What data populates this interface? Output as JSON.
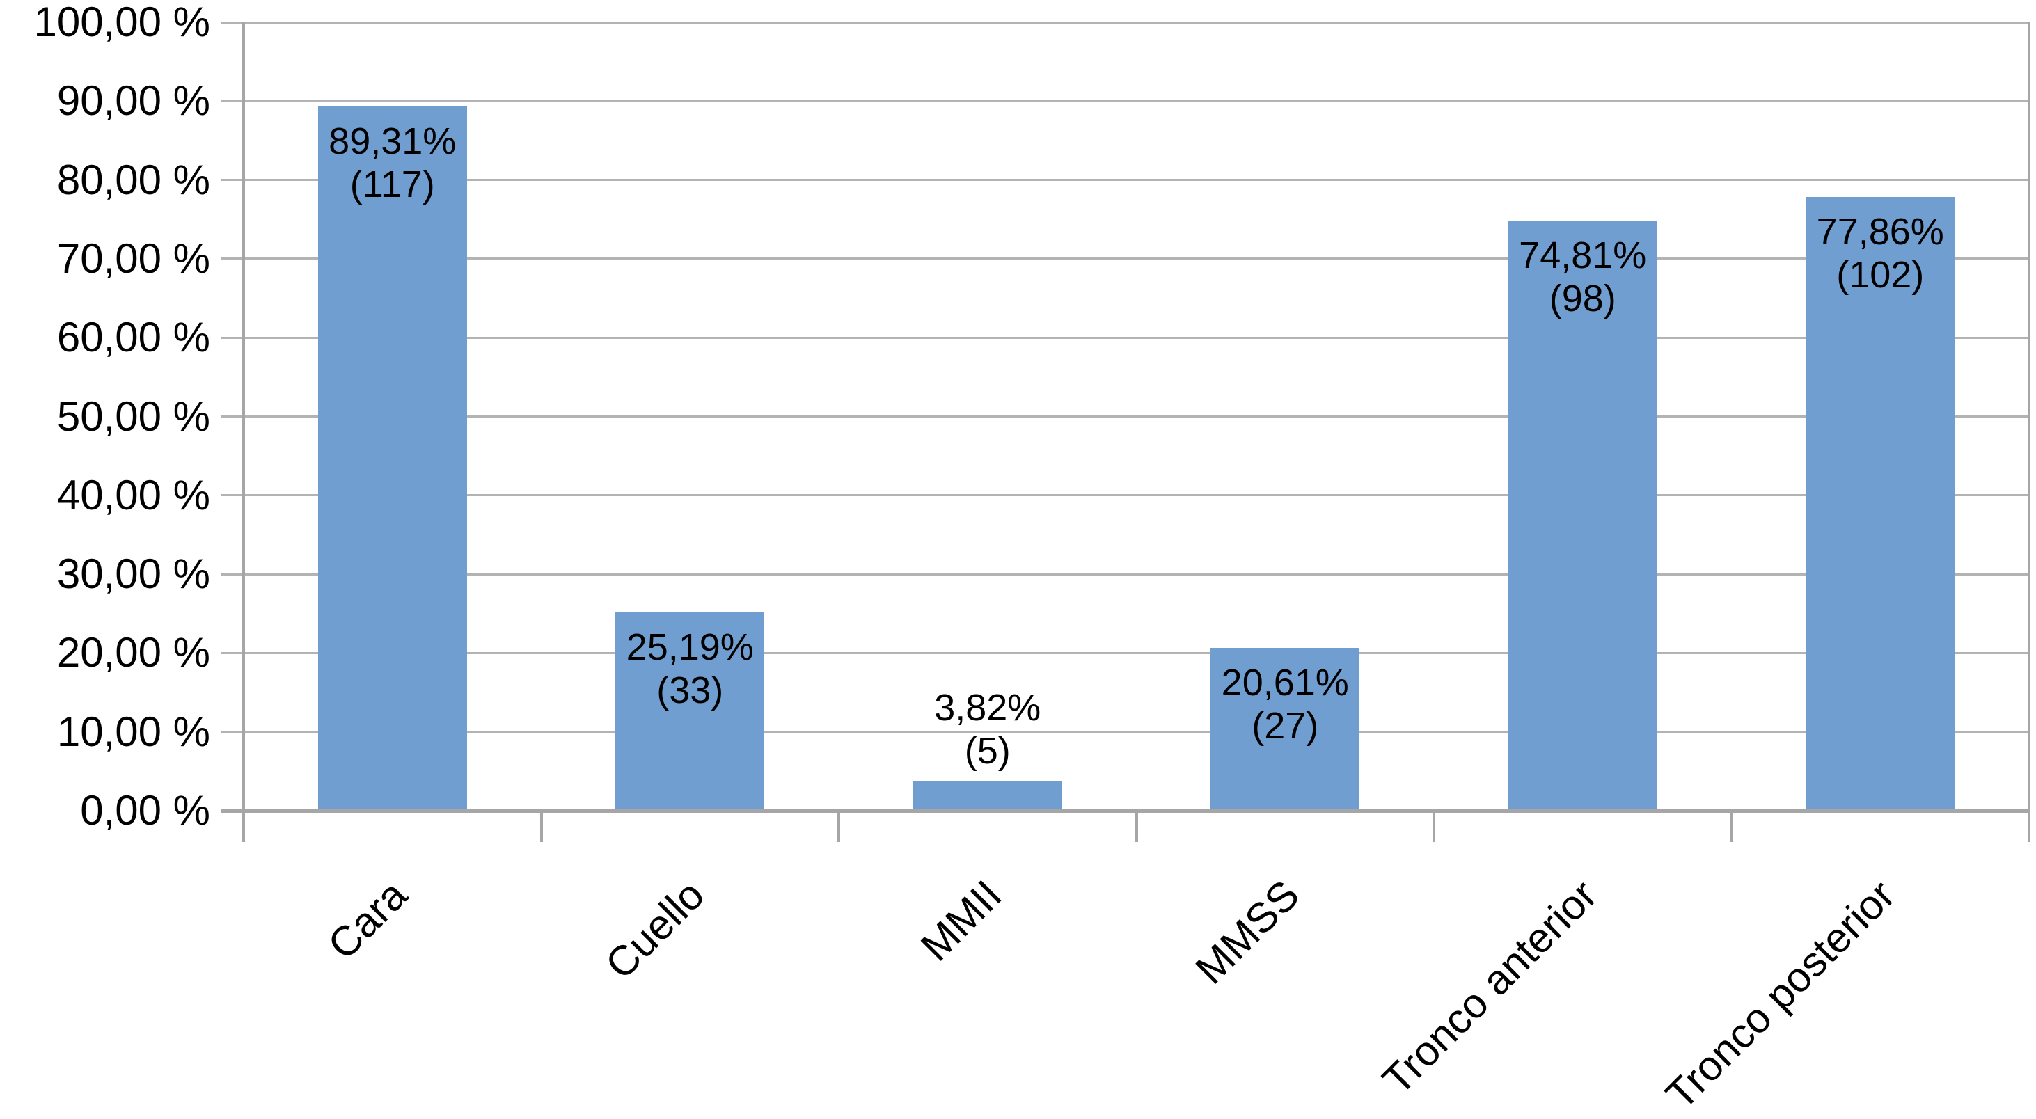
{
  "chart_data": {
    "type": "bar",
    "title": "",
    "xlabel": "",
    "ylabel": "",
    "legend": "none",
    "grid": "horizontal",
    "ylim": [
      0,
      100
    ],
    "y_tick_step": 10,
    "y_tick_labels": [
      "100,00 %",
      "90,00 %",
      "80,00 %",
      "70,00 %",
      "60,00 %",
      "50,00 %",
      "40,00 %",
      "30,00 %",
      "20,00 %",
      "10,00 %",
      "0,00 %"
    ],
    "categories": [
      "Cara",
      "Cuello",
      "MMII",
      "MMSS",
      "Tronco anterior",
      "Tronco posterior"
    ],
    "values": [
      89.31,
      25.19,
      3.82,
      20.61,
      74.81,
      77.86
    ],
    "counts": [
      117,
      33,
      5,
      27,
      98,
      102
    ],
    "value_labels": [
      "89,31%",
      "25,19%",
      "3,82%",
      "20,61%",
      "74,81%",
      "77,86%"
    ],
    "count_labels": [
      "(117)",
      "(33)",
      "(5)",
      "(27)",
      "(98)",
      "(102)"
    ],
    "label_placement": [
      "inside",
      "inside",
      "outside",
      "inside",
      "inside",
      "inside"
    ],
    "colors": {
      "bar": "#719ED1",
      "gridline": "#b3b3b3",
      "axis": "#a6a6a6",
      "text": "#000000",
      "background": "#ffffff"
    }
  }
}
